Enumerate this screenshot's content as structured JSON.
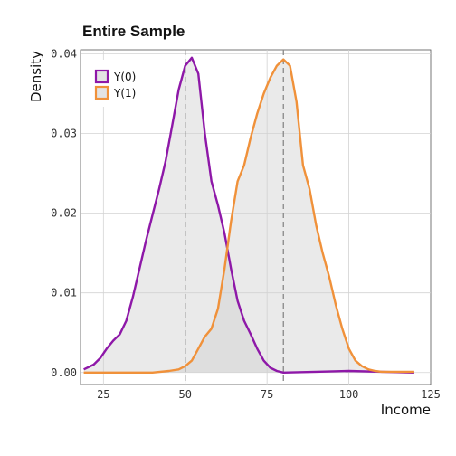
{
  "chart_data": {
    "type": "area",
    "title": "Entire Sample",
    "xlabel": "Income",
    "ylabel": "Density",
    "xlim": [
      18,
      125
    ],
    "ylim": [
      -0.0015,
      0.0405
    ],
    "xticks": [
      25,
      50,
      75,
      100,
      125
    ],
    "yticks": [
      0.0,
      0.01,
      0.02,
      0.03,
      0.04
    ],
    "xtick_labels": [
      "25",
      "50",
      "75",
      "100",
      "125"
    ],
    "ytick_labels": [
      "0.00",
      "0.01",
      "0.02",
      "0.03",
      "0.04"
    ],
    "grid": true,
    "legend_position": "top-left",
    "vlines": [
      50,
      80
    ],
    "series": [
      {
        "name": "Y(0)",
        "color": "#8e18a8",
        "fill": "#d0d0d0",
        "points": [
          [
            19,
            0.0004
          ],
          [
            22,
            0.001
          ],
          [
            24,
            0.0018
          ],
          [
            26,
            0.003
          ],
          [
            28,
            0.004
          ],
          [
            30,
            0.0048
          ],
          [
            32,
            0.0065
          ],
          [
            34,
            0.0095
          ],
          [
            36,
            0.013
          ],
          [
            38,
            0.0165
          ],
          [
            40,
            0.0198
          ],
          [
            42,
            0.023
          ],
          [
            44,
            0.0265
          ],
          [
            46,
            0.031
          ],
          [
            48,
            0.0355
          ],
          [
            50,
            0.0385
          ],
          [
            52,
            0.0395
          ],
          [
            54,
            0.0375
          ],
          [
            56,
            0.03
          ],
          [
            58,
            0.024
          ],
          [
            60,
            0.021
          ],
          [
            62,
            0.0175
          ],
          [
            64,
            0.013
          ],
          [
            66,
            0.009
          ],
          [
            68,
            0.0065
          ],
          [
            70,
            0.0048
          ],
          [
            72,
            0.003
          ],
          [
            74,
            0.0015
          ],
          [
            76,
            0.0006
          ],
          [
            78,
            0.0002
          ],
          [
            80,
            0.0
          ],
          [
            90,
            0.0001
          ],
          [
            100,
            0.0002
          ],
          [
            110,
            0.0001
          ],
          [
            120,
            0.0
          ]
        ]
      },
      {
        "name": "Y(1)",
        "color": "#f0913a",
        "fill": "#d0d0d0",
        "points": [
          [
            19,
            0.0
          ],
          [
            30,
            0.0
          ],
          [
            40,
            0.0
          ],
          [
            45,
            0.0002
          ],
          [
            48,
            0.0004
          ],
          [
            50,
            0.0008
          ],
          [
            52,
            0.0015
          ],
          [
            54,
            0.003
          ],
          [
            56,
            0.0045
          ],
          [
            58,
            0.0055
          ],
          [
            60,
            0.008
          ],
          [
            62,
            0.013
          ],
          [
            64,
            0.019
          ],
          [
            66,
            0.024
          ],
          [
            68,
            0.026
          ],
          [
            70,
            0.0295
          ],
          [
            72,
            0.0325
          ],
          [
            74,
            0.035
          ],
          [
            76,
            0.037
          ],
          [
            78,
            0.0385
          ],
          [
            80,
            0.0393
          ],
          [
            82,
            0.0385
          ],
          [
            84,
            0.034
          ],
          [
            86,
            0.026
          ],
          [
            88,
            0.023
          ],
          [
            90,
            0.0185
          ],
          [
            92,
            0.015
          ],
          [
            94,
            0.012
          ],
          [
            96,
            0.0085
          ],
          [
            98,
            0.0055
          ],
          [
            100,
            0.003
          ],
          [
            102,
            0.0015
          ],
          [
            104,
            0.0008
          ],
          [
            106,
            0.0004
          ],
          [
            108,
            0.0002
          ],
          [
            110,
            0.0001
          ],
          [
            120,
            0.0001
          ]
        ]
      }
    ]
  }
}
